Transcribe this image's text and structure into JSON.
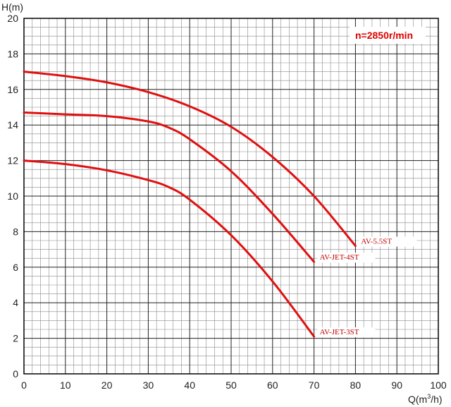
{
  "chart_data": {
    "type": "line",
    "title": "",
    "xlabel": "Q(m³/h)",
    "ylabel": "H(m)",
    "xlim": [
      0,
      100
    ],
    "ylim": [
      0,
      20
    ],
    "x_ticks": [
      0,
      10,
      20,
      30,
      40,
      50,
      60,
      70,
      80,
      90,
      100
    ],
    "y_ticks": [
      0,
      2,
      4,
      6,
      8,
      10,
      12,
      14,
      16,
      18,
      20
    ],
    "grid": true,
    "speed_label": "n=2850r/min",
    "line_color": "#e01010",
    "series": [
      {
        "name": "AV-5.5ST",
        "x": [
          0,
          10,
          20,
          30,
          40,
          50,
          60,
          70,
          80
        ],
        "y": [
          17.0,
          16.75,
          16.4,
          15.85,
          15.05,
          13.9,
          12.2,
          10.0,
          7.2
        ]
      },
      {
        "name": "AV-JET-4ST",
        "x": [
          0,
          10,
          20,
          30,
          35,
          40,
          50,
          60,
          70
        ],
        "y": [
          14.7,
          14.6,
          14.5,
          14.2,
          13.85,
          13.2,
          11.4,
          9.0,
          6.3
        ]
      },
      {
        "name": "AV-JET-3ST",
        "x": [
          0,
          10,
          20,
          30,
          35,
          40,
          50,
          60,
          70
        ],
        "y": [
          12.0,
          11.8,
          11.45,
          10.9,
          10.5,
          9.8,
          7.8,
          5.2,
          2.1
        ]
      }
    ]
  }
}
